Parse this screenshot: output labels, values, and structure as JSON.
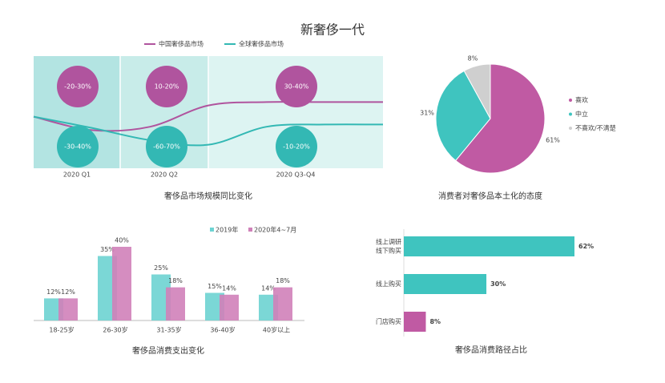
{
  "title": "新奢侈一代",
  "chart_data": [
    {
      "type": "line",
      "title": "奢侈品市场规模同比变化",
      "periods": [
        "2020 Q1",
        "2020 Q2",
        "2020 Q3-Q4"
      ],
      "x": [
        0,
        1,
        2,
        3,
        4,
        5,
        6
      ],
      "xlim": [
        0,
        6
      ],
      "ylim": [
        0,
        100
      ],
      "series": [
        {
          "name": "中国奢侈品市场",
          "color": "#b0549e",
          "values": [
            46,
            34,
            37,
            56,
            59,
            59,
            59
          ],
          "annotations": [
            "-20-30%",
            "10-20%",
            "30-40%"
          ]
        },
        {
          "name": "全球奢侈品市场",
          "color": "#33b8b4",
          "values": [
            46,
            36,
            25,
            21,
            37,
            39,
            39
          ],
          "annotations": [
            "-30-40%",
            "-60-70%",
            "-10-20%"
          ]
        }
      ]
    },
    {
      "type": "pie",
      "title": "消费者对奢侈品本土化的态度",
      "categories": [
        "喜欢",
        "中立",
        "不喜欢/不清楚"
      ],
      "values": [
        61,
        31,
        8
      ],
      "value_labels": [
        "61%",
        "31%",
        "8%"
      ],
      "colors": [
        "#c05aa3",
        "#3fc4bf",
        "#cfcfcf"
      ]
    },
    {
      "type": "grouped_bar",
      "title": "奢侈品消费支出变化",
      "categories": [
        "18-25岁",
        "26-30岁",
        "31-35岁",
        "36-40岁",
        "40岁以上"
      ],
      "ylim": [
        0,
        40
      ],
      "series": [
        {
          "name": "2019年",
          "color": "#6dd3d2",
          "values": [
            12,
            35,
            25,
            15,
            14
          ],
          "value_labels": [
            "12%",
            "35%",
            "25%",
            "15%",
            "14%"
          ]
        },
        {
          "name": "2020年4~7月",
          "color": "#d081b9",
          "values": [
            12,
            40,
            18,
            14,
            18
          ],
          "value_labels": [
            "12%",
            "40%",
            "18%",
            "14%",
            "18%"
          ]
        }
      ]
    },
    {
      "type": "hbar",
      "title": "奢侈品消费路径占比",
      "categories": [
        [
          "线上调研",
          "线下购买"
        ],
        "线上购买",
        "门店购买"
      ],
      "values": [
        62,
        30,
        8
      ],
      "value_labels": [
        "62%",
        "30%",
        "8%"
      ],
      "colors": [
        "#3fc4bf",
        "#3fc4bf",
        "#c05aa3"
      ],
      "xlim": [
        0,
        62
      ]
    }
  ]
}
